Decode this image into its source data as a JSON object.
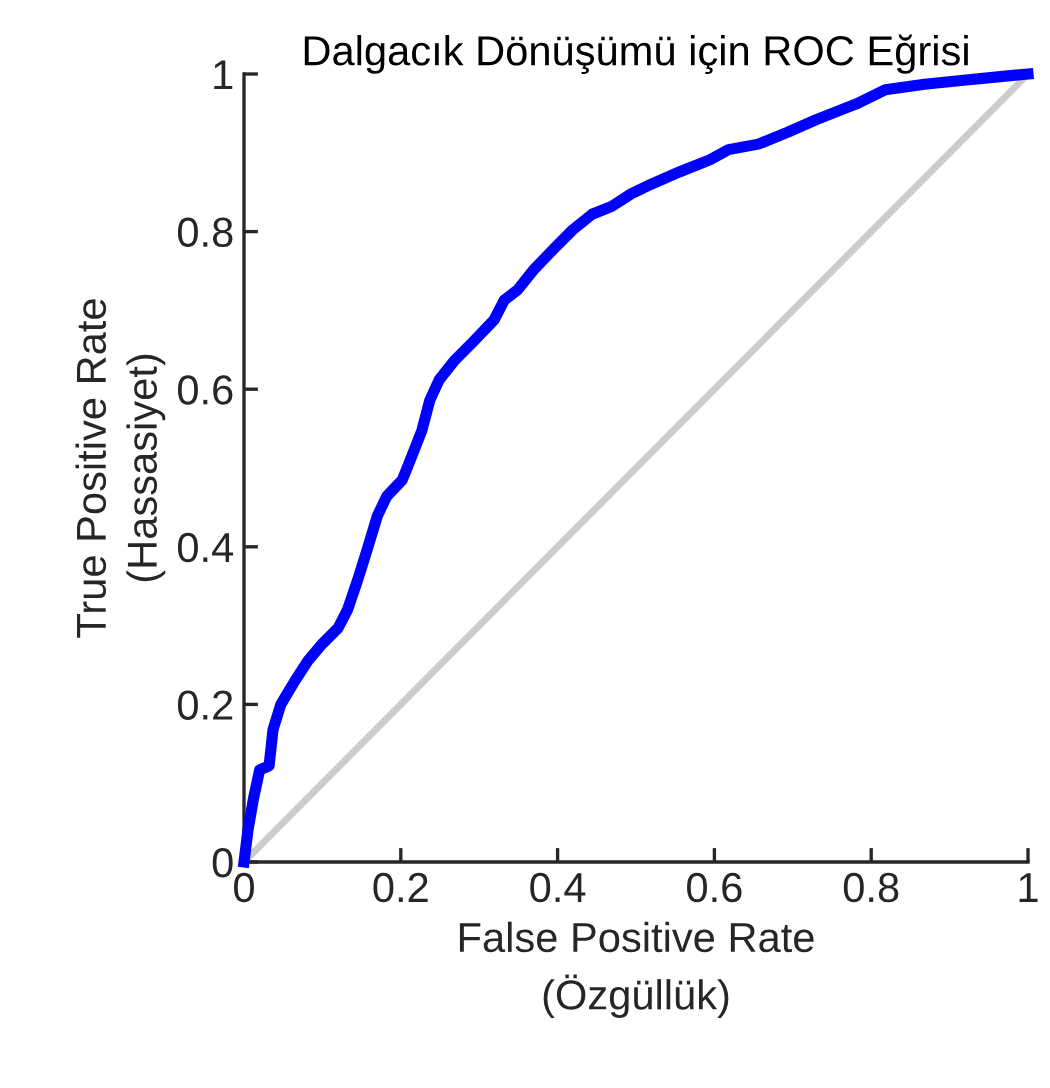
{
  "chart_data": {
    "type": "line",
    "title": "Dalgacık Dönüşümü için ROC Eğrisi",
    "xlabel": "False Positive Rate\n(Özgüllük)",
    "ylabel": "True Positive Rate\n(Hassasiyet)",
    "xlim": [
      0,
      1
    ],
    "ylim": [
      0,
      1
    ],
    "xticks": [
      0,
      0.2,
      0.4,
      0.6,
      0.8,
      1
    ],
    "yticks": [
      0,
      0.2,
      0.4,
      0.6,
      0.8,
      1
    ],
    "grid": false,
    "legend": false,
    "marker": "none",
    "line_style": "solid",
    "series": [
      {
        "color": "#0000ff",
        "x": [
          0,
          0.005,
          0.012,
          0.02,
          0.032,
          0.037,
          0.047,
          0.065,
          0.082,
          0.1,
          0.12,
          0.132,
          0.145,
          0.157,
          0.17,
          0.182,
          0.202,
          0.214,
          0.227,
          0.237,
          0.249,
          0.269,
          0.294,
          0.319,
          0.332,
          0.349,
          0.369,
          0.394,
          0.419,
          0.444,
          0.469,
          0.494,
          0.519,
          0.556,
          0.594,
          0.618,
          0.656,
          0.693,
          0.73,
          0.781,
          0.818,
          0.868,
          0.918,
          0.968,
          1
        ],
        "values": [
          0,
          0.04,
          0.08,
          0.117,
          0.122,
          0.168,
          0.2,
          0.23,
          0.256,
          0.277,
          0.297,
          0.32,
          0.358,
          0.396,
          0.439,
          0.464,
          0.485,
          0.515,
          0.548,
          0.586,
          0.612,
          0.637,
          0.662,
          0.688,
          0.713,
          0.726,
          0.751,
          0.777,
          0.802,
          0.822,
          0.832,
          0.848,
          0.86,
          0.876,
          0.891,
          0.904,
          0.911,
          0.926,
          0.942,
          0.962,
          0.98,
          0.987,
          0.992,
          0.997,
          1
        ]
      },
      {
        "color": "#cccccc",
        "x": [
          0,
          1
        ],
        "values": [
          0,
          1
        ]
      }
    ]
  }
}
